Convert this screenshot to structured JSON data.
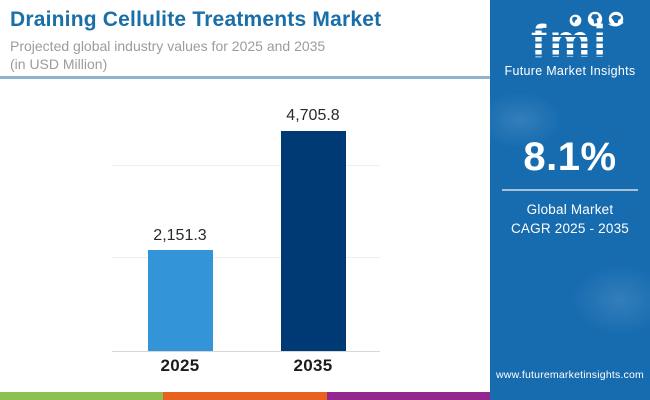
{
  "header": {
    "title": "Draining Cellulite Treatments Market",
    "subtitle_line1": "Projected global industry values for 2025 and 2035",
    "subtitle_line2": "(in USD Million)"
  },
  "chart_data": {
    "type": "bar",
    "categories": [
      "2025",
      "2035"
    ],
    "values": [
      2151.3,
      4705.8
    ],
    "value_labels": [
      "2,151.3",
      "4,705.8"
    ],
    "unit": "USD Million",
    "title": "Draining Cellulite Treatments Market",
    "xlabel": "",
    "ylabel": "",
    "ylim": [
      0,
      5000
    ],
    "gridlines_at": [
      2000,
      4000
    ],
    "grid": "horizontal, unlabeled",
    "legend": "none",
    "bar_colors": [
      "#3394D7",
      "#003A75"
    ]
  },
  "sidebar": {
    "logo_text": "fmi",
    "logo_caption": "Future Market Insights",
    "globe_icons": [
      "globe-americas-icon",
      "globe-africa-icon",
      "globe-asia-icon"
    ],
    "cagr_value": "8.1%",
    "cagr_label_line1": "Global Market",
    "cagr_label_line2": "CAGR 2025 - 2035",
    "website": "www.futuremarketinsights.com",
    "bg_color": "#176CB0"
  },
  "footer": {
    "stripe_colors": [
      "#8CC152",
      "#E8611E",
      "#93268F"
    ]
  },
  "colors": {
    "title_blue": "#1A6FA8",
    "subtitle_gray": "#9C9C9C",
    "header_divider": "#8FB3CE",
    "bar_2025": "#3394D7",
    "bar_2035": "#003A75",
    "sidebar_blue": "#176CB0"
  }
}
